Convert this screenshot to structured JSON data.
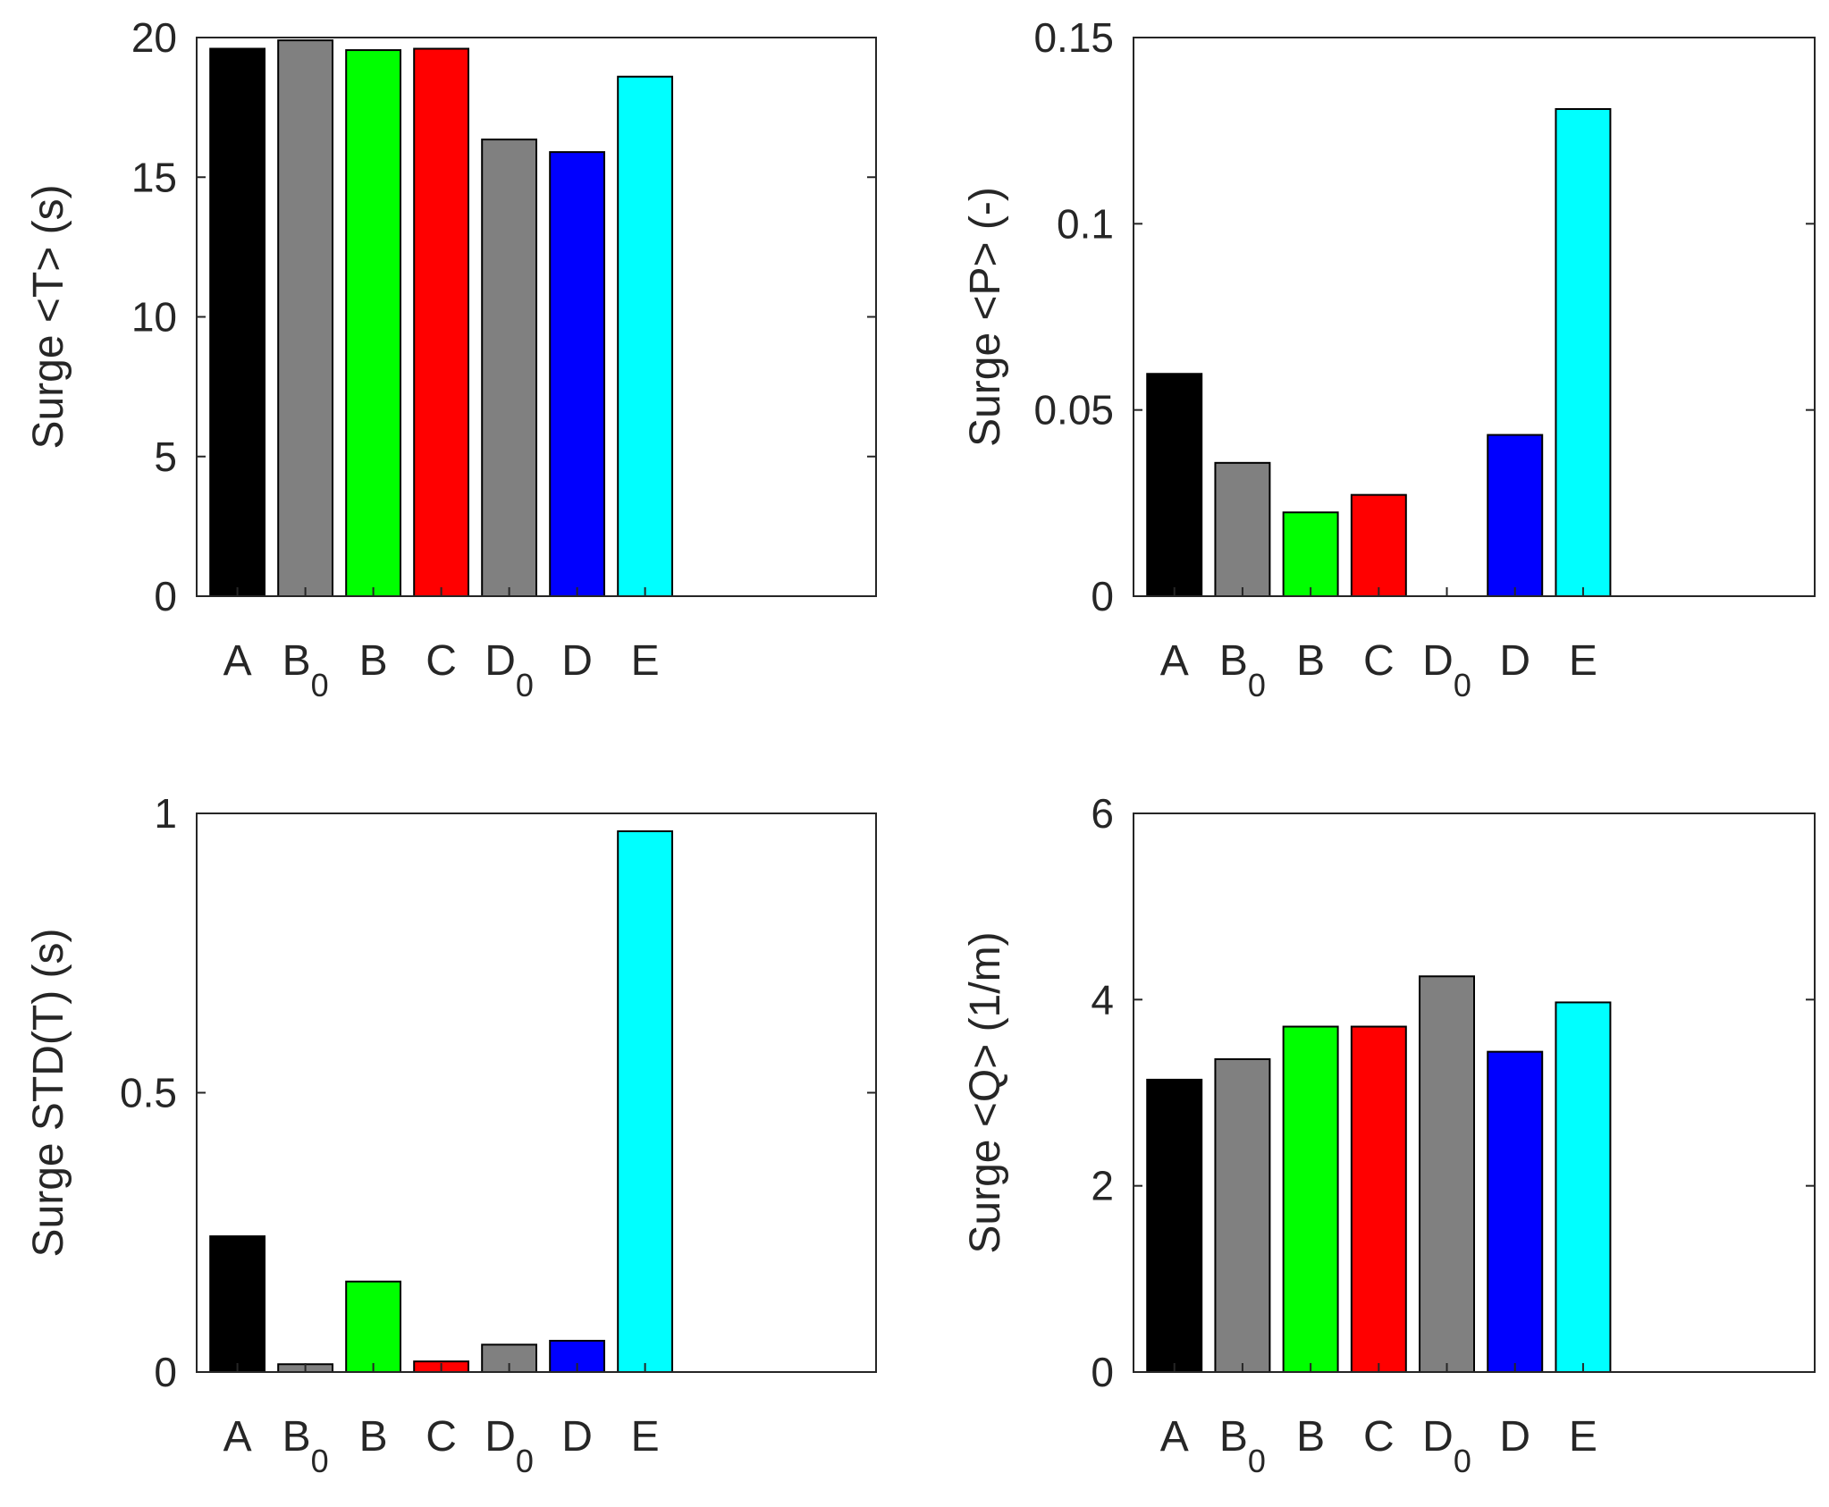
{
  "chart_data": [
    {
      "type": "bar",
      "categories": [
        {
          "main": "A",
          "sub": ""
        },
        {
          "main": "B",
          "sub": "0"
        },
        {
          "main": "B",
          "sub": ""
        },
        {
          "main": "C",
          "sub": ""
        },
        {
          "main": "D",
          "sub": "0"
        },
        {
          "main": "D",
          "sub": ""
        },
        {
          "main": "E",
          "sub": ""
        }
      ],
      "values": [
        19.6,
        19.9,
        19.55,
        19.6,
        16.35,
        15.9,
        18.6
      ],
      "ylabel": "Surge <T> (s)",
      "ylim": [
        0,
        20
      ],
      "yticks": [
        0,
        5,
        10,
        15,
        20
      ],
      "ytick_labels": [
        "0",
        "5",
        "10",
        "15",
        "20"
      ],
      "xlim": [
        0.4,
        10.4
      ]
    },
    {
      "type": "bar",
      "categories": [
        {
          "main": "A",
          "sub": ""
        },
        {
          "main": "B",
          "sub": "0"
        },
        {
          "main": "B",
          "sub": ""
        },
        {
          "main": "C",
          "sub": ""
        },
        {
          "main": "D",
          "sub": "0"
        },
        {
          "main": "D",
          "sub": ""
        },
        {
          "main": "E",
          "sub": ""
        }
      ],
      "values": [
        0.0597,
        0.0358,
        0.0225,
        0.0272,
        0,
        0.0433,
        0.1308
      ],
      "ylabel": "Surge <P> (-)",
      "ylim": [
        0,
        0.15
      ],
      "yticks": [
        0,
        0.05,
        0.1,
        0.15
      ],
      "ytick_labels": [
        "0",
        "0.05",
        "0.1",
        "0.15"
      ],
      "xlim": [
        0.4,
        10.4
      ]
    },
    {
      "type": "bar",
      "categories": [
        {
          "main": "A",
          "sub": ""
        },
        {
          "main": "B",
          "sub": "0"
        },
        {
          "main": "B",
          "sub": ""
        },
        {
          "main": "C",
          "sub": ""
        },
        {
          "main": "D",
          "sub": "0"
        },
        {
          "main": "D",
          "sub": ""
        },
        {
          "main": "E",
          "sub": ""
        }
      ],
      "values": [
        0.243,
        0.014,
        0.162,
        0.019,
        0.049,
        0.056,
        0.968
      ],
      "ylabel": "Surge STD(T) (s)",
      "ylim": [
        0,
        1
      ],
      "yticks": [
        0,
        0.5,
        1
      ],
      "ytick_labels": [
        "0",
        "0.5",
        "1"
      ],
      "xlim": [
        0.4,
        10.4
      ]
    },
    {
      "type": "bar",
      "categories": [
        {
          "main": "A",
          "sub": ""
        },
        {
          "main": "B",
          "sub": "0"
        },
        {
          "main": "B",
          "sub": ""
        },
        {
          "main": "C",
          "sub": ""
        },
        {
          "main": "D",
          "sub": "0"
        },
        {
          "main": "D",
          "sub": ""
        },
        {
          "main": "E",
          "sub": ""
        }
      ],
      "values": [
        3.14,
        3.36,
        3.71,
        3.71,
        4.25,
        3.44,
        3.97
      ],
      "ylabel": "Surge <Q> (1/m)",
      "ylim": [
        0,
        6
      ],
      "yticks": [
        0,
        2,
        4,
        6
      ],
      "ytick_labels": [
        "0",
        "2",
        "4",
        "6"
      ],
      "xlim": [
        0.4,
        10.4
      ]
    }
  ],
  "bar_colors": [
    "#000000",
    "#808080",
    "#00ff00",
    "#ff0000",
    "#808080",
    "#0000ff",
    "#00ffff"
  ],
  "axis_color": "#262626"
}
